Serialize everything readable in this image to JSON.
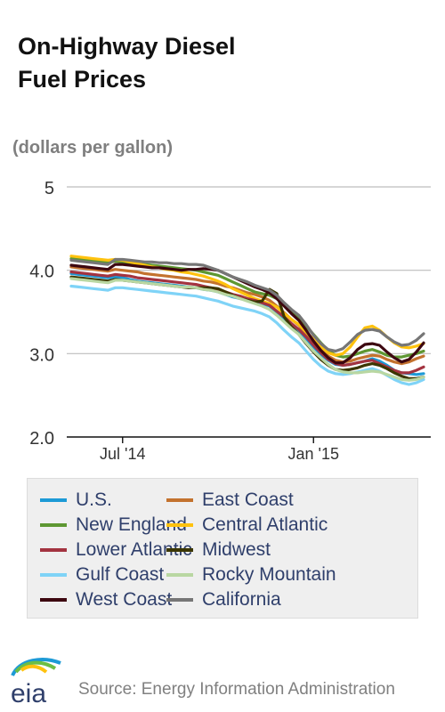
{
  "title": "On-Highway Diesel Fuel Prices",
  "subtitle": "(dollars per gallon)",
  "source": "Source: Energy Information Administration",
  "logo_text": "eia",
  "chart_data": {
    "type": "line",
    "y_ticks": [
      "5",
      "4.0",
      "3.0",
      "2.0"
    ],
    "y_tick_values": [
      5,
      4,
      3,
      2
    ],
    "ylim": [
      2,
      5
    ],
    "x_ticks": [
      {
        "label": "Jul '14",
        "week": 7
      },
      {
        "label": "Jan '15",
        "week": 33
      }
    ],
    "x_start": "2014-05-26",
    "x_end": "2015-04-27",
    "grid": true,
    "legend_position": "bottom",
    "series": [
      {
        "name": "U.S.",
        "color": "#1d9ad6",
        "values": [
          3.96,
          3.95,
          3.94,
          3.93,
          3.92,
          3.91,
          3.92,
          3.91,
          3.89,
          3.87,
          3.86,
          3.85,
          3.84,
          3.83,
          3.82,
          3.81,
          3.8,
          3.79,
          3.77,
          3.76,
          3.74,
          3.71,
          3.68,
          3.66,
          3.64,
          3.62,
          3.6,
          3.57,
          3.5,
          3.42,
          3.35,
          3.28,
          3.18,
          3.08,
          2.99,
          2.92,
          2.87,
          2.86,
          2.87,
          2.89,
          2.91,
          2.94,
          2.91,
          2.86,
          2.8,
          2.77,
          2.76,
          2.75,
          2.76
        ]
      },
      {
        "name": "East Coast",
        "color": "#c3722e",
        "values": [
          4.04,
          4.03,
          4.02,
          4.01,
          4.0,
          3.99,
          4.01,
          4.0,
          3.99,
          3.98,
          3.96,
          3.95,
          3.94,
          3.93,
          3.92,
          3.91,
          3.9,
          3.89,
          3.87,
          3.86,
          3.84,
          3.81,
          3.79,
          3.76,
          3.73,
          3.71,
          3.68,
          3.64,
          3.57,
          3.49,
          3.41,
          3.34,
          3.24,
          3.14,
          3.05,
          2.97,
          2.92,
          2.9,
          2.91,
          2.94,
          2.96,
          2.98,
          2.97,
          2.93,
          2.9,
          2.88,
          2.9,
          2.94,
          2.97
        ]
      },
      {
        "name": "New England",
        "color": "#5e9732",
        "values": [
          4.14,
          4.13,
          4.12,
          4.11,
          4.1,
          4.09,
          4.11,
          4.1,
          4.09,
          4.08,
          4.07,
          4.06,
          4.05,
          4.04,
          4.03,
          4.02,
          4.01,
          4.0,
          3.98,
          3.96,
          3.94,
          3.9,
          3.86,
          3.82,
          3.78,
          3.74,
          3.72,
          3.7,
          3.66,
          3.58,
          3.49,
          3.42,
          3.33,
          3.23,
          3.13,
          3.04,
          2.98,
          2.96,
          2.97,
          3.0,
          3.03,
          3.05,
          3.02,
          2.98,
          2.96,
          2.96,
          2.98,
          3.0,
          3.03
        ]
      },
      {
        "name": "Central Atlantic",
        "color": "#ffc20e",
        "values": [
          4.17,
          4.16,
          4.15,
          4.14,
          4.13,
          4.12,
          4.13,
          4.12,
          4.1,
          4.08,
          4.06,
          4.04,
          4.03,
          4.01,
          4.0,
          3.98,
          3.97,
          3.95,
          3.93,
          3.9,
          3.87,
          3.83,
          3.78,
          3.74,
          3.7,
          3.66,
          3.63,
          3.6,
          3.56,
          3.48,
          3.41,
          3.35,
          3.26,
          3.17,
          3.08,
          3.01,
          2.98,
          3.0,
          3.08,
          3.2,
          3.31,
          3.33,
          3.28,
          3.2,
          3.13,
          3.08,
          3.07,
          3.09,
          3.12
        ]
      },
      {
        "name": "Lower Atlantic",
        "color": "#a33340",
        "values": [
          3.98,
          3.97,
          3.96,
          3.95,
          3.94,
          3.93,
          3.95,
          3.94,
          3.93,
          3.91,
          3.9,
          3.89,
          3.88,
          3.87,
          3.86,
          3.85,
          3.84,
          3.83,
          3.81,
          3.79,
          3.77,
          3.74,
          3.71,
          3.69,
          3.66,
          3.64,
          3.61,
          3.58,
          3.51,
          3.44,
          3.36,
          3.29,
          3.2,
          3.1,
          3.01,
          2.93,
          2.88,
          2.86,
          2.87,
          2.89,
          2.91,
          2.92,
          2.88,
          2.84,
          2.8,
          2.77,
          2.77,
          2.8,
          2.84
        ]
      },
      {
        "name": "Midwest",
        "color": "#3b3600",
        "values": [
          3.92,
          3.91,
          3.9,
          3.89,
          3.88,
          3.87,
          3.89,
          3.88,
          3.87,
          3.86,
          3.85,
          3.84,
          3.83,
          3.82,
          3.81,
          3.8,
          3.79,
          3.79,
          3.79,
          3.79,
          3.78,
          3.74,
          3.7,
          3.66,
          3.64,
          3.62,
          3.63,
          3.77,
          3.72,
          3.44,
          3.32,
          3.23,
          3.12,
          3.02,
          2.93,
          2.86,
          2.81,
          2.8,
          2.81,
          2.83,
          2.86,
          2.88,
          2.86,
          2.82,
          2.77,
          2.73,
          2.7,
          2.7,
          2.72
        ]
      },
      {
        "name": "Gulf Coast",
        "color": "#7fd3f7",
        "values": [
          3.81,
          3.8,
          3.79,
          3.78,
          3.77,
          3.76,
          3.79,
          3.79,
          3.78,
          3.77,
          3.76,
          3.75,
          3.74,
          3.73,
          3.72,
          3.71,
          3.7,
          3.69,
          3.67,
          3.65,
          3.63,
          3.6,
          3.57,
          3.55,
          3.53,
          3.51,
          3.48,
          3.44,
          3.37,
          3.28,
          3.2,
          3.13,
          3.03,
          2.93,
          2.85,
          2.79,
          2.76,
          2.75,
          2.76,
          2.78,
          2.8,
          2.82,
          2.79,
          2.74,
          2.69,
          2.65,
          2.63,
          2.65,
          2.69
        ]
      },
      {
        "name": "Rocky Mountain",
        "color": "#b9d7a2",
        "values": [
          3.9,
          3.89,
          3.88,
          3.87,
          3.86,
          3.85,
          3.88,
          3.88,
          3.87,
          3.86,
          3.85,
          3.84,
          3.83,
          3.82,
          3.81,
          3.8,
          3.8,
          3.79,
          3.77,
          3.76,
          3.74,
          3.71,
          3.69,
          3.66,
          3.63,
          3.6,
          3.57,
          3.53,
          3.46,
          3.38,
          3.3,
          3.23,
          3.13,
          3.03,
          2.95,
          2.87,
          2.81,
          2.78,
          2.77,
          2.77,
          2.78,
          2.79,
          2.78,
          2.75,
          2.72,
          2.69,
          2.68,
          2.69,
          2.72
        ]
      },
      {
        "name": "West Coast",
        "color": "#3d0710",
        "values": [
          4.06,
          4.05,
          4.04,
          4.03,
          4.02,
          4.01,
          4.07,
          4.07,
          4.06,
          4.05,
          4.04,
          4.03,
          4.03,
          4.02,
          4.01,
          4.0,
          4.01,
          4.01,
          4.02,
          4.01,
          4.0,
          3.96,
          3.92,
          3.88,
          3.84,
          3.8,
          3.77,
          3.73,
          3.66,
          3.57,
          3.48,
          3.4,
          3.28,
          3.15,
          3.04,
          2.95,
          2.89,
          2.89,
          2.95,
          3.05,
          3.11,
          3.12,
          3.1,
          3.02,
          2.95,
          2.9,
          2.93,
          3.02,
          3.13
        ]
      },
      {
        "name": "California",
        "color": "#767676",
        "values": [
          4.12,
          4.11,
          4.1,
          4.09,
          4.08,
          4.07,
          4.13,
          4.13,
          4.12,
          4.11,
          4.1,
          4.1,
          4.09,
          4.09,
          4.08,
          4.08,
          4.07,
          4.07,
          4.06,
          4.03,
          4.0,
          3.96,
          3.92,
          3.89,
          3.86,
          3.82,
          3.79,
          3.76,
          3.7,
          3.61,
          3.53,
          3.46,
          3.35,
          3.22,
          3.12,
          3.05,
          3.03,
          3.06,
          3.14,
          3.23,
          3.28,
          3.29,
          3.27,
          3.2,
          3.14,
          3.1,
          3.11,
          3.16,
          3.24
        ]
      }
    ]
  }
}
